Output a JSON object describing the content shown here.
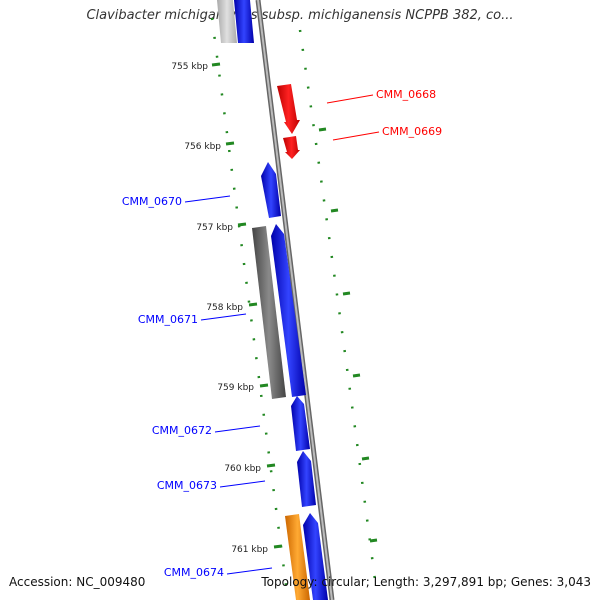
{
  "title": "Clavibacter michiganensis subsp. michiganensis NCPPB 382, co...",
  "footer": {
    "accession": "Accession: NC_009480",
    "summary": "Topology: circular; Length: 3,297,891 bp; Genes: 3,043"
  },
  "ticks": [
    "755 kbp",
    "756 kbp",
    "757 kbp",
    "758 kbp",
    "759 kbp",
    "760 kbp",
    "761 kbp"
  ],
  "gene_labels": [
    "CMM_0668",
    "CMM_0669",
    "CMM_0670",
    "CMM_0671",
    "CMM_0672",
    "CMM_0673",
    "CMM_0674"
  ],
  "colors": {
    "forward_gene": "#0000ff",
    "reverse_gene": "#ff0000",
    "gray_feature": "#666666",
    "orange_feature": "#ff9900",
    "backbone": "#888888",
    "tick": "#228822"
  }
}
